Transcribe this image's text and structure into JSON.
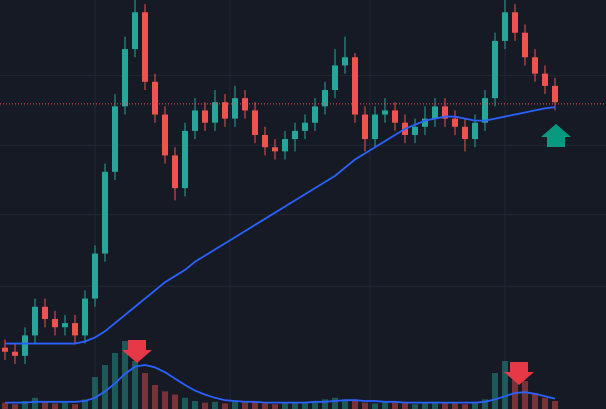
{
  "chart_data": {
    "type": "candlestick",
    "up_color": "#26a69a",
    "down_color": "#ef5350",
    "ma_color": "#2962ff",
    "grid": true,
    "ylim": [
      0,
      100
    ],
    "volume_ylim": [
      0,
      100
    ],
    "yticks": [
      30,
      47.5,
      64.5,
      81.5
    ],
    "xticks": [
      9,
      22.5,
      36.5,
      50
    ],
    "last_price": 74.6,
    "open": [
      15,
      14,
      13,
      18,
      25,
      22,
      20,
      21,
      18,
      27,
      38,
      58,
      74,
      88,
      97,
      80,
      72,
      62,
      54,
      68,
      73,
      70,
      75,
      71,
      76,
      73,
      67,
      64,
      63,
      66,
      68,
      70,
      74,
      78,
      84,
      86,
      72,
      66,
      72,
      73,
      70,
      67,
      69,
      71,
      74,
      71,
      69,
      66,
      70,
      76,
      90,
      97,
      92,
      86,
      82,
      79
    ],
    "high": [
      17,
      16,
      20,
      27,
      27,
      24,
      23,
      23,
      29,
      40,
      60,
      77,
      91,
      100,
      99,
      82,
      74,
      64,
      70,
      76,
      75,
      78,
      77,
      79,
      78,
      75,
      69,
      66,
      68,
      70,
      72,
      76,
      80,
      88,
      91,
      87,
      74,
      74,
      76,
      75,
      72,
      71,
      74,
      76,
      76,
      73,
      71,
      72,
      78,
      92,
      100,
      99,
      94,
      88,
      84,
      81
    ],
    "low": [
      12,
      11,
      11,
      16,
      20,
      18,
      18,
      16,
      16,
      25,
      36,
      56,
      72,
      86,
      78,
      70,
      60,
      51,
      52,
      66,
      68,
      68,
      69,
      69,
      71,
      65,
      62,
      61,
      61,
      63,
      66,
      68,
      72,
      76,
      82,
      70,
      63,
      64,
      70,
      68,
      65,
      65,
      67,
      69,
      69,
      67,
      63,
      64,
      68,
      74,
      88,
      90,
      84,
      80,
      77,
      73
    ],
    "close": [
      14,
      13,
      18,
      25,
      22,
      20,
      21,
      18,
      27,
      38,
      58,
      74,
      88,
      97,
      80,
      72,
      62,
      54,
      68,
      73,
      70,
      75,
      71,
      76,
      73,
      67,
      64,
      63,
      66,
      68,
      70,
      74,
      78,
      84,
      86,
      72,
      66,
      72,
      73,
      70,
      67,
      69,
      71,
      74,
      71,
      69,
      66,
      70,
      76,
      90,
      97,
      92,
      86,
      82,
      79,
      75
    ],
    "ma": [
      16,
      16,
      16,
      16,
      16,
      16,
      16,
      16,
      16.5,
      17.5,
      19,
      21,
      23,
      25,
      27,
      29,
      31,
      32.5,
      34,
      36,
      37.5,
      39,
      40.5,
      42,
      43.5,
      45,
      46.5,
      48,
      49.5,
      51,
      52.5,
      54,
      55.5,
      57,
      59,
      61,
      62.5,
      64,
      65.5,
      67,
      68.5,
      69.5,
      70.5,
      71,
      71.5,
      71.5,
      71,
      70.5,
      70.5,
      71,
      71.5,
      72,
      72.5,
      73,
      73.5,
      73.8
    ],
    "volume": [
      8,
      6,
      10,
      14,
      9,
      7,
      8,
      6,
      12,
      40,
      55,
      70,
      85,
      60,
      45,
      30,
      22,
      18,
      14,
      10,
      8,
      9,
      7,
      10,
      8,
      9,
      7,
      6,
      8,
      7,
      9,
      10,
      12,
      14,
      12,
      10,
      8,
      7,
      9,
      8,
      7,
      6,
      8,
      9,
      7,
      8,
      6,
      9,
      12,
      45,
      60,
      50,
      35,
      20,
      14,
      10
    ],
    "volume_ma": [
      8,
      8,
      8,
      9,
      9,
      9,
      9,
      9,
      10,
      14,
      22,
      32,
      44,
      53,
      55,
      52,
      46,
      38,
      30,
      23,
      18,
      14,
      11,
      10,
      9,
      9,
      8,
      8,
      8,
      8,
      8,
      9,
      9,
      10,
      11,
      11,
      10,
      10,
      9,
      9,
      8,
      8,
      8,
      8,
      8,
      8,
      8,
      8,
      9,
      12,
      16,
      20,
      21,
      19,
      16,
      13
    ]
  }
}
